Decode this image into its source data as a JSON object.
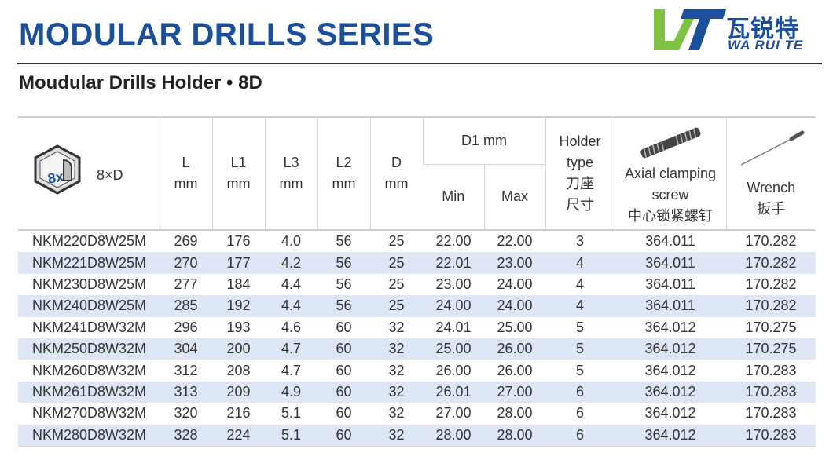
{
  "header": {
    "title": "MODULAR DRILLS SERIES",
    "subtitle": "Moudular Drills Holder • 8D"
  },
  "logo": {
    "cn": "瓦锐特",
    "en": "WA RUI TE",
    "colors": {
      "green": "#7dc242",
      "blue": "#1b4f9c"
    }
  },
  "table": {
    "icon_label": "8×D",
    "icon_badge": "8x",
    "headers": {
      "L": [
        "L",
        "mm"
      ],
      "L1": [
        "L1",
        "mm"
      ],
      "L3": [
        "L3",
        "mm"
      ],
      "L2": [
        "L2",
        "mm"
      ],
      "D": [
        "D",
        "mm"
      ],
      "D1": "D1 mm",
      "min": "Min",
      "max": "Max",
      "holder": [
        "Holder",
        "type",
        "刀座",
        "尺寸"
      ],
      "screw": [
        "Axial clamping",
        "screw",
        "中心锁紧螺钉"
      ],
      "wrench": [
        "Wrench",
        "扳手"
      ]
    },
    "rows": [
      [
        "NKM220D8W25M",
        "269",
        "176",
        "4.0",
        "56",
        "25",
        "22.00",
        "22.00",
        "3",
        "364.011",
        "170.282"
      ],
      [
        "NKM221D8W25M",
        "270",
        "177",
        "4.2",
        "56",
        "25",
        "22.01",
        "23.00",
        "4",
        "364.011",
        "170.282"
      ],
      [
        "NKM230D8W25M",
        "277",
        "184",
        "4.4",
        "56",
        "25",
        "23.00",
        "24.00",
        "4",
        "364.011",
        "170.282"
      ],
      [
        "NKM240D8W25M",
        "285",
        "192",
        "4.4",
        "56",
        "25",
        "24.00",
        "24.00",
        "4",
        "364.011",
        "170.282"
      ],
      [
        "NKM241D8W32M",
        "296",
        "193",
        "4.6",
        "60",
        "32",
        "24.01",
        "25.00",
        "5",
        "364.012",
        "170.275"
      ],
      [
        "NKM250D8W32M",
        "304",
        "200",
        "4.7",
        "60",
        "32",
        "25.00",
        "26.00",
        "5",
        "364.012",
        "170.275"
      ],
      [
        "NKM260D8W32M",
        "312",
        "208",
        "4.7",
        "60",
        "32",
        "26.00",
        "26.00",
        "5",
        "364.012",
        "170.283"
      ],
      [
        "NKM261D8W32M",
        "313",
        "209",
        "4.9",
        "60",
        "32",
        "26.01",
        "27.00",
        "6",
        "364.012",
        "170.283"
      ],
      [
        "NKM270D8W32M",
        "320",
        "216",
        "5.1",
        "60",
        "32",
        "27.00",
        "28.00",
        "6",
        "364.012",
        "170.283"
      ],
      [
        "NKM280D8W32M",
        "328",
        "224",
        "5.1",
        "60",
        "32",
        "28.00",
        "28.00",
        "6",
        "364.012",
        "170.283"
      ]
    ],
    "stripe_color": "#dde6f5"
  }
}
